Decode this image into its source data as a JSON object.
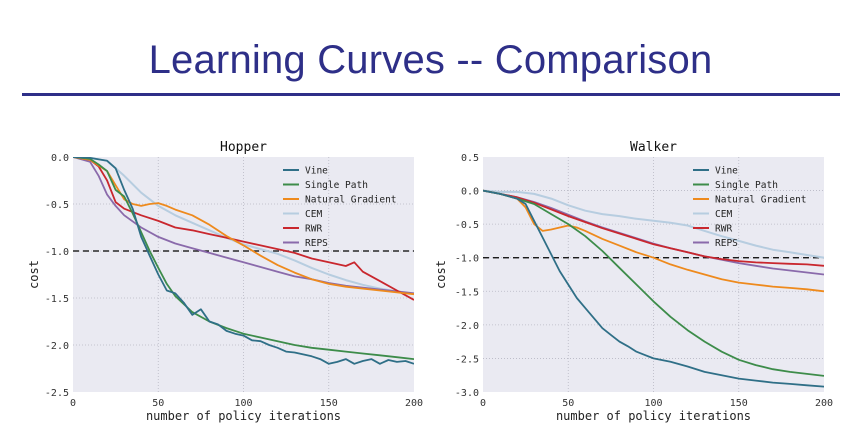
{
  "slide": {
    "title": "Learning Curves -- Comparison"
  },
  "colors": {
    "Vine": "#2f6f87",
    "Single Path": "#3d8c4a",
    "Natural Gradient": "#ee8a1d",
    "CEM": "#b7cde0",
    "RWR": "#c9272e",
    "REPS": "#8a6aab",
    "plot_bg": "#eaeaf2",
    "grid": "#ffffff",
    "reference": "#000000"
  },
  "chart_data": [
    {
      "type": "line",
      "title": "Hopper",
      "xlabel": "number of policy iterations",
      "ylabel": "cost",
      "xlim": [
        0,
        200
      ],
      "ylim": [
        -2.5,
        0.0
      ],
      "xticks": [
        "0",
        "50",
        "100",
        "150",
        "200"
      ],
      "yticks": [
        "0.0",
        "-0.5",
        "-1.0",
        "-1.5",
        "-2.0",
        "-2.5"
      ],
      "ytick_values": [
        0.0,
        -0.5,
        -1.0,
        -1.5,
        -2.0,
        -2.5
      ],
      "xtick_values": [
        0,
        50,
        100,
        150,
        200
      ],
      "reference_line": -1.0,
      "grid": true,
      "legend_position": "top-right",
      "series": [
        {
          "name": "Vine",
          "x": [
            0,
            10,
            20,
            25,
            30,
            35,
            40,
            45,
            50,
            55,
            60,
            65,
            70,
            75,
            80,
            85,
            90,
            95,
            100,
            105,
            110,
            115,
            120,
            125,
            130,
            135,
            140,
            145,
            150,
            155,
            160,
            165,
            170,
            175,
            180,
            185,
            190,
            195,
            200
          ],
          "values": [
            0.0,
            -0.01,
            -0.04,
            -0.12,
            -0.35,
            -0.55,
            -0.85,
            -1.05,
            -1.25,
            -1.42,
            -1.45,
            -1.55,
            -1.68,
            -1.62,
            -1.75,
            -1.78,
            -1.85,
            -1.88,
            -1.9,
            -1.95,
            -1.96,
            -2.0,
            -2.03,
            -2.07,
            -2.08,
            -2.1,
            -2.12,
            -2.15,
            -2.2,
            -2.18,
            -2.15,
            -2.2,
            -2.17,
            -2.15,
            -2.2,
            -2.16,
            -2.18,
            -2.17,
            -2.2
          ]
        },
        {
          "name": "Single Path",
          "x": [
            0,
            10,
            15,
            20,
            25,
            30,
            35,
            40,
            45,
            50,
            55,
            60,
            70,
            80,
            90,
            100,
            110,
            120,
            130,
            140,
            150,
            160,
            170,
            180,
            190,
            200
          ],
          "values": [
            0.0,
            -0.02,
            -0.08,
            -0.15,
            -0.35,
            -0.42,
            -0.6,
            -0.8,
            -1.0,
            -1.18,
            -1.35,
            -1.48,
            -1.65,
            -1.75,
            -1.82,
            -1.88,
            -1.92,
            -1.96,
            -2.0,
            -2.03,
            -2.05,
            -2.07,
            -2.09,
            -2.11,
            -2.13,
            -2.15
          ]
        },
        {
          "name": "Natural Gradient",
          "x": [
            0,
            10,
            20,
            25,
            30,
            35,
            40,
            45,
            50,
            55,
            60,
            70,
            80,
            90,
            100,
            110,
            120,
            130,
            140,
            150,
            160,
            170,
            180,
            190,
            200
          ],
          "values": [
            0.0,
            -0.03,
            -0.15,
            -0.3,
            -0.45,
            -0.5,
            -0.52,
            -0.5,
            -0.49,
            -0.52,
            -0.56,
            -0.62,
            -0.72,
            -0.84,
            -0.94,
            -1.05,
            -1.15,
            -1.23,
            -1.3,
            -1.35,
            -1.38,
            -1.4,
            -1.42,
            -1.44,
            -1.46
          ]
        },
        {
          "name": "CEM",
          "x": [
            0,
            10,
            20,
            30,
            40,
            50,
            60,
            70,
            80,
            90,
            100,
            110,
            120,
            130,
            140,
            150,
            160,
            170,
            180,
            190,
            200
          ],
          "values": [
            0.0,
            -0.01,
            -0.04,
            -0.2,
            -0.38,
            -0.52,
            -0.62,
            -0.7,
            -0.78,
            -0.86,
            -0.93,
            -0.98,
            -1.03,
            -1.1,
            -1.18,
            -1.25,
            -1.31,
            -1.36,
            -1.4,
            -1.43,
            -1.46
          ]
        },
        {
          "name": "RWR",
          "x": [
            0,
            10,
            15,
            20,
            25,
            30,
            40,
            50,
            60,
            70,
            80,
            90,
            100,
            110,
            120,
            130,
            140,
            150,
            160,
            165,
            170,
            180,
            190,
            200
          ],
          "values": [
            0.0,
            -0.03,
            -0.1,
            -0.25,
            -0.48,
            -0.55,
            -0.62,
            -0.68,
            -0.75,
            -0.78,
            -0.82,
            -0.86,
            -0.9,
            -0.94,
            -0.98,
            -1.02,
            -1.08,
            -1.12,
            -1.16,
            -1.12,
            -1.22,
            -1.32,
            -1.42,
            -1.52
          ]
        },
        {
          "name": "REPS",
          "x": [
            0,
            10,
            15,
            20,
            25,
            30,
            40,
            50,
            60,
            70,
            80,
            90,
            100,
            110,
            120,
            130,
            140,
            150,
            160,
            170,
            180,
            190,
            200
          ],
          "values": [
            0.0,
            -0.05,
            -0.2,
            -0.4,
            -0.52,
            -0.62,
            -0.75,
            -0.85,
            -0.92,
            -0.97,
            -1.02,
            -1.07,
            -1.12,
            -1.17,
            -1.22,
            -1.27,
            -1.3,
            -1.34,
            -1.37,
            -1.39,
            -1.41,
            -1.43,
            -1.45
          ]
        }
      ]
    },
    {
      "type": "line",
      "title": "Walker",
      "xlabel": "number of policy iterations",
      "ylabel": "cost",
      "xlim": [
        0,
        200
      ],
      "ylim": [
        -3.0,
        0.5
      ],
      "xticks": [
        "0",
        "50",
        "100",
        "150",
        "200"
      ],
      "yticks": [
        "0.5",
        "0.0",
        "-0.5",
        "-1.0",
        "-1.5",
        "-2.0",
        "-2.5",
        "-3.0"
      ],
      "ytick_values": [
        0.5,
        0.0,
        -0.5,
        -1.0,
        -1.5,
        -2.0,
        -2.5,
        -3.0
      ],
      "xtick_values": [
        0,
        50,
        100,
        150,
        200
      ],
      "reference_line": -1.0,
      "grid": true,
      "legend_position": "top-right",
      "series": [
        {
          "name": "Vine",
          "x": [
            0,
            10,
            20,
            25,
            30,
            35,
            40,
            45,
            50,
            55,
            60,
            65,
            70,
            75,
            80,
            85,
            90,
            95,
            100,
            110,
            120,
            130,
            140,
            150,
            160,
            170,
            180,
            190,
            200
          ],
          "values": [
            0.0,
            -0.05,
            -0.12,
            -0.2,
            -0.45,
            -0.7,
            -0.95,
            -1.2,
            -1.4,
            -1.6,
            -1.75,
            -1.9,
            -2.05,
            -2.15,
            -2.25,
            -2.32,
            -2.4,
            -2.45,
            -2.5,
            -2.55,
            -2.62,
            -2.7,
            -2.75,
            -2.8,
            -2.83,
            -2.86,
            -2.88,
            -2.9,
            -2.92
          ]
        },
        {
          "name": "Single Path",
          "x": [
            0,
            10,
            20,
            30,
            40,
            50,
            60,
            70,
            80,
            90,
            100,
            110,
            120,
            130,
            140,
            150,
            160,
            170,
            180,
            190,
            200
          ],
          "values": [
            0.0,
            -0.05,
            -0.12,
            -0.2,
            -0.35,
            -0.5,
            -0.68,
            -0.9,
            -1.15,
            -1.4,
            -1.65,
            -1.88,
            -2.08,
            -2.25,
            -2.4,
            -2.52,
            -2.6,
            -2.66,
            -2.7,
            -2.73,
            -2.76
          ]
        },
        {
          "name": "Natural Gradient",
          "x": [
            0,
            10,
            20,
            25,
            30,
            35,
            40,
            45,
            50,
            55,
            60,
            70,
            80,
            90,
            100,
            110,
            120,
            130,
            140,
            150,
            160,
            170,
            180,
            190,
            200
          ],
          "values": [
            0.0,
            -0.05,
            -0.12,
            -0.25,
            -0.5,
            -0.6,
            -0.58,
            -0.55,
            -0.52,
            -0.55,
            -0.6,
            -0.72,
            -0.82,
            -0.92,
            -1.0,
            -1.1,
            -1.18,
            -1.25,
            -1.32,
            -1.37,
            -1.4,
            -1.43,
            -1.45,
            -1.47,
            -1.5
          ]
        },
        {
          "name": "CEM",
          "x": [
            0,
            10,
            20,
            30,
            40,
            50,
            60,
            70,
            80,
            90,
            100,
            110,
            120,
            130,
            140,
            150,
            160,
            170,
            180,
            190,
            200
          ],
          "values": [
            0.0,
            -0.02,
            -0.02,
            -0.05,
            -0.12,
            -0.22,
            -0.3,
            -0.35,
            -0.38,
            -0.42,
            -0.45,
            -0.48,
            -0.52,
            -0.6,
            -0.68,
            -0.75,
            -0.82,
            -0.88,
            -0.92,
            -0.96,
            -1.0
          ]
        },
        {
          "name": "RWR",
          "x": [
            0,
            10,
            20,
            30,
            40,
            50,
            60,
            70,
            80,
            90,
            100,
            110,
            120,
            130,
            140,
            150,
            160,
            170,
            180,
            190,
            200
          ],
          "values": [
            0.0,
            -0.05,
            -0.1,
            -0.18,
            -0.28,
            -0.38,
            -0.47,
            -0.56,
            -0.64,
            -0.72,
            -0.8,
            -0.86,
            -0.92,
            -0.98,
            -1.02,
            -1.05,
            -1.07,
            -1.08,
            -1.09,
            -1.1,
            -1.12
          ]
        },
        {
          "name": "REPS",
          "x": [
            0,
            10,
            20,
            30,
            40,
            50,
            60,
            70,
            80,
            90,
            100,
            110,
            120,
            130,
            140,
            150,
            160,
            170,
            180,
            190,
            200
          ],
          "values": [
            0.0,
            -0.05,
            -0.1,
            -0.17,
            -0.26,
            -0.36,
            -0.46,
            -0.55,
            -0.63,
            -0.71,
            -0.79,
            -0.86,
            -0.92,
            -0.98,
            -1.03,
            -1.08,
            -1.12,
            -1.16,
            -1.19,
            -1.22,
            -1.25
          ]
        }
      ]
    }
  ]
}
